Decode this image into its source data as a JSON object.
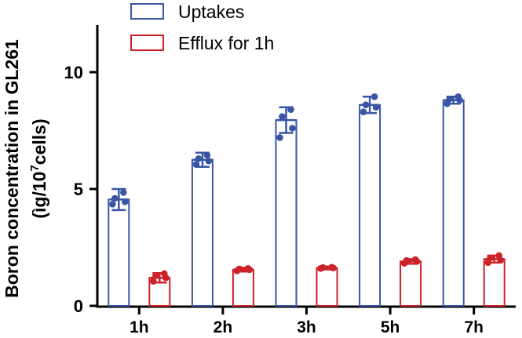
{
  "chart_data": {
    "type": "bar",
    "categories": [
      "1h",
      "2h",
      "3h",
      "5h",
      "7h"
    ],
    "ylabel_line1": "Boron concentration in GL261",
    "ylabel_line2_prefix": "(ìg/10",
    "ylabel_line2_sup": "7",
    "ylabel_line2_suffix": "cells)",
    "ylim": [
      0,
      12
    ],
    "yticks": [
      0,
      5,
      10
    ],
    "ytick_labels": [
      "0",
      "5",
      "10"
    ],
    "grid": false,
    "legend_position": "top",
    "series": [
      {
        "name": "Uptakes",
        "color": "#3a55a4",
        "values": [
          4.55,
          6.25,
          7.95,
          8.6,
          8.8
        ],
        "errors": [
          0.45,
          0.3,
          0.55,
          0.35,
          0.15
        ],
        "points": [
          [
            4.35,
            4.45,
            4.6,
            4.85
          ],
          [
            6.05,
            6.2,
            6.3,
            6.45
          ],
          [
            7.2,
            7.6,
            8.1,
            8.4
          ],
          [
            8.3,
            8.5,
            8.6,
            8.95
          ],
          [
            8.65,
            8.8,
            8.85,
            8.95
          ]
        ]
      },
      {
        "name": "Efflux for 1h",
        "color": "#cc2229",
        "values": [
          1.2,
          1.55,
          1.62,
          1.9,
          2.0
        ],
        "errors": [
          0.2,
          0.08,
          0.06,
          0.1,
          0.15
        ],
        "points": [
          [
            1.05,
            1.2,
            1.3,
            1.38
          ],
          [
            1.5,
            1.55,
            1.58,
            1.6
          ],
          [
            1.6,
            1.62,
            1.64,
            1.65
          ],
          [
            1.82,
            1.9,
            1.94,
            1.98
          ],
          [
            1.85,
            1.95,
            2.05,
            2.15
          ]
        ]
      }
    ]
  }
}
